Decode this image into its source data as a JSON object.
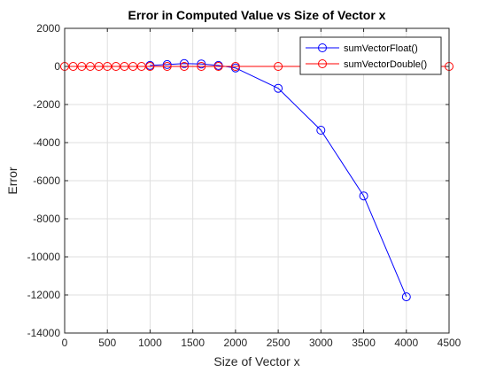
{
  "chart_data": {
    "type": "line",
    "title": "Error in Computed Value vs Size of Vector x",
    "xlabel": "Size of Vector x",
    "ylabel": "Error",
    "xlim": [
      0,
      4500
    ],
    "ylim": [
      -14000,
      2000
    ],
    "xticks": [
      "0",
      "500",
      "1000",
      "1500",
      "2000",
      "2500",
      "3000",
      "3500",
      "4000",
      "4500"
    ],
    "yticks": [
      "2000",
      "0",
      "-2000",
      "-4000",
      "-6000",
      "-8000",
      "-10000",
      "-12000",
      "-14000"
    ],
    "grid": true,
    "legend_position": "top-right",
    "series": [
      {
        "name": "sumVectorFloat()",
        "color": "#0000ff",
        "marker": "circle",
        "x": [
          1000,
          1200,
          1400,
          1600,
          1800,
          2000,
          2500,
          3000,
          3500,
          4000
        ],
        "y": [
          50,
          100,
          150,
          130,
          50,
          -80,
          -1150,
          -3350,
          -6800,
          -12100
        ]
      },
      {
        "name": "sumVectorDouble()",
        "color": "#ff0000",
        "marker": "circle",
        "x": [
          0,
          100,
          200,
          300,
          400,
          500,
          600,
          700,
          800,
          900,
          1000,
          1200,
          1400,
          1600,
          1800,
          2000,
          2500,
          3000,
          3500,
          4000,
          4500
        ],
        "y": [
          0,
          0,
          0,
          0,
          0,
          0,
          0,
          0,
          0,
          0,
          0,
          0,
          0,
          0,
          0,
          0,
          0,
          0,
          0,
          0,
          0
        ]
      }
    ]
  }
}
